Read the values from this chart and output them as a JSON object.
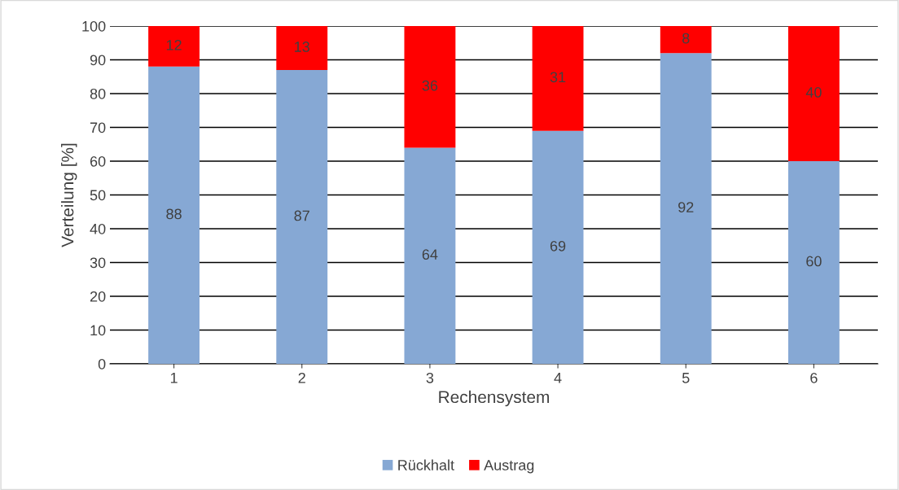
{
  "chart_data": {
    "type": "bar",
    "stacked": true,
    "xlabel": "Rechensystem",
    "ylabel": "Verteilung [%]",
    "categories": [
      "1",
      "2",
      "3",
      "4",
      "5",
      "6"
    ],
    "series": [
      {
        "name": "Rückhalt",
        "color": "#86a8d4",
        "values": [
          88,
          87,
          64,
          69,
          92,
          60
        ]
      },
      {
        "name": "Austrag",
        "color": "#ff0000",
        "values": [
          12,
          13,
          36,
          31,
          8,
          40
        ]
      }
    ],
    "ylim": [
      0,
      100
    ],
    "yticks": [
      0,
      10,
      20,
      30,
      40,
      50,
      60,
      70,
      80,
      90,
      100
    ],
    "grid": "y",
    "legend": "bottom",
    "data_labels": true
  }
}
